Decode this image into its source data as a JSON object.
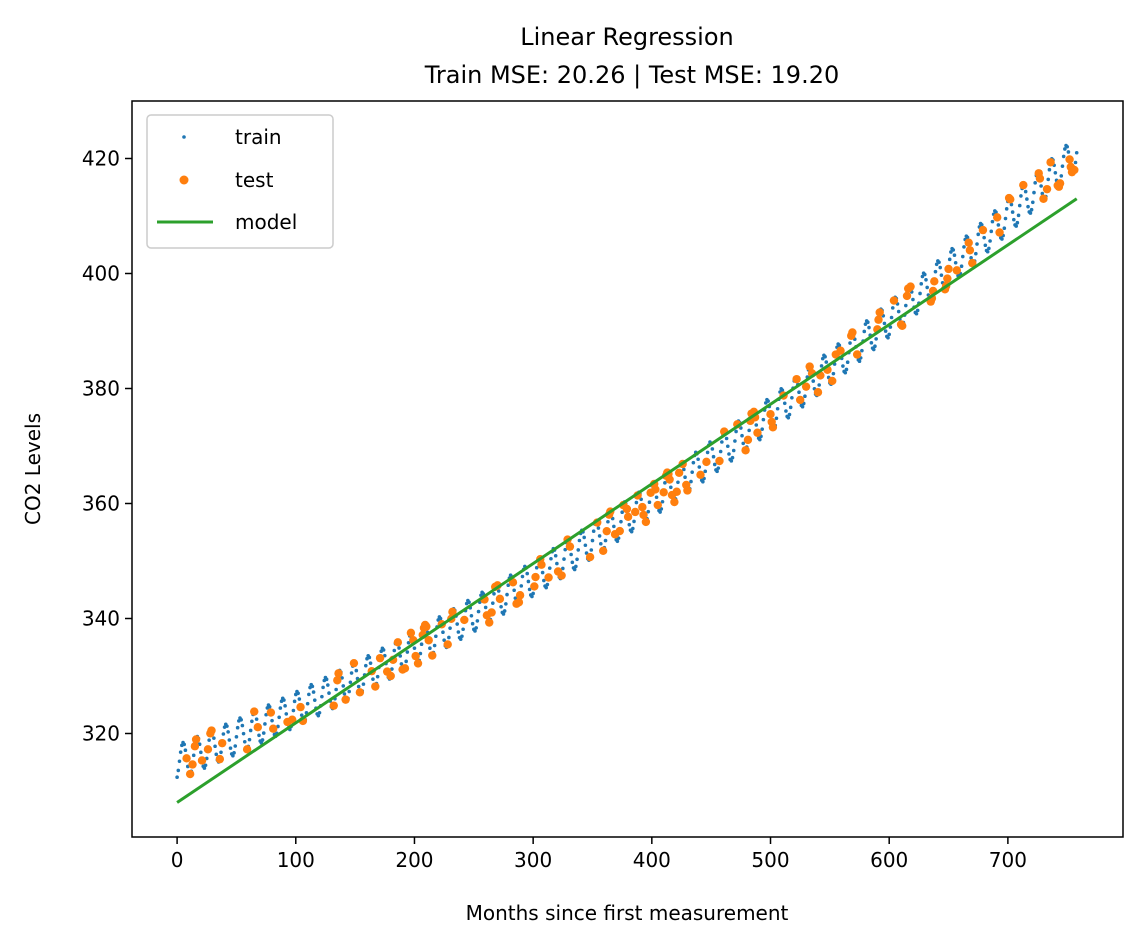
{
  "chart_data": {
    "type": "scatter",
    "title": "Linear Regression",
    "subtitle": "Train MSE: 20.26 | Test MSE: 19.20",
    "xlabel": "Months since first measurement",
    "ylabel": "CO2 Levels",
    "xlim": [
      -38,
      797
    ],
    "ylim": [
      302,
      430
    ],
    "xticks": [
      0,
      100,
      200,
      300,
      400,
      500,
      600,
      700
    ],
    "yticks": [
      320,
      340,
      360,
      380,
      400,
      420
    ],
    "xtick_labels": [
      "0",
      "100",
      "200",
      "300",
      "400",
      "500",
      "600",
      "700"
    ],
    "ytick_labels": [
      "320",
      "340",
      "360",
      "380",
      "400",
      "420"
    ],
    "grid": false,
    "legend": {
      "position": "top-left",
      "entries": [
        {
          "label": "train",
          "marker": "small-dot",
          "color": "#1f77b4"
        },
        {
          "label": "test",
          "marker": "dot",
          "color": "#ff7f0e"
        },
        {
          "label": "model",
          "marker": "line",
          "color": "#2ca02c"
        }
      ]
    },
    "trend": {
      "description": "Monthly CO2 readings rise from about 315 at month 0 to about 421 at month 758, curving upward (quadratic-like) with a seasonal oscillation of roughly ±3.",
      "start": [
        0,
        315
      ],
      "end": [
        758,
        421
      ],
      "seasonal_amplitude": 3,
      "period_months": 12
    },
    "series": [
      {
        "name": "train",
        "color": "#1f77b4",
        "marker": "small-dot",
        "x_range": [
          0,
          758
        ],
        "count": 606
      },
      {
        "name": "test",
        "color": "#ff7f0e",
        "marker": "dot",
        "x_range": [
          0,
          758
        ],
        "count": 152
      },
      {
        "name": "model",
        "color": "#2ca02c",
        "type": "line",
        "x": [
          0,
          758
        ],
        "values": [
          308,
          413
        ]
      }
    ]
  }
}
